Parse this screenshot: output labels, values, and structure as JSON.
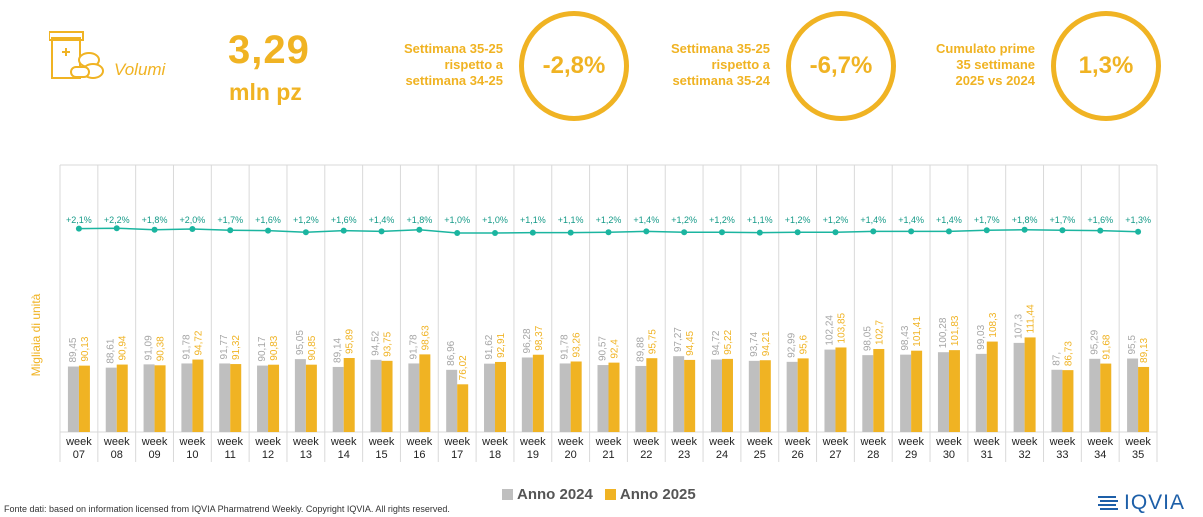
{
  "header": {
    "section_label": "Volumi",
    "volume_value": "3,29",
    "volume_unit": "mln pz",
    "kpis": [
      {
        "label_lines": [
          "Settimana 35-25",
          "rispetto a",
          "settimana 34-25"
        ],
        "value": "-2,8%"
      },
      {
        "label_lines": [
          "Settimana 35-25",
          "rispetto a",
          "settimana 35-24"
        ],
        "value": "-6,7%"
      },
      {
        "label_lines": [
          "Cumulato prime",
          "35 settimane",
          "2025 vs 2024"
        ],
        "value": "1,3%"
      }
    ]
  },
  "colors": {
    "accent": "#F0B323",
    "gray_bar": "#BFBFBF",
    "line": "#1BB5A0",
    "brand": "#1D5FA8"
  },
  "chart_data": {
    "type": "bar",
    "ylabel": "Migliaia di unità",
    "categories": [
      "week 07",
      "week 08",
      "week 09",
      "week 10",
      "week 11",
      "week 12",
      "week 13",
      "week 14",
      "week 15",
      "week 16",
      "week 17",
      "week 18",
      "week 19",
      "week 20",
      "week 21",
      "week 22",
      "week 23",
      "week 24",
      "week 25",
      "week 26",
      "week 27",
      "week 28",
      "week 29",
      "week 30",
      "week 31",
      "week 32",
      "week 33",
      "week 34",
      "week 35"
    ],
    "series": [
      {
        "name": "Anno 2024",
        "values": [
          89.45,
          88.61,
          91.09,
          91.78,
          91.77,
          90.17,
          95.05,
          89.14,
          94.52,
          91.78,
          86.96,
          91.62,
          96.28,
          91.78,
          90.57,
          89.88,
          97.27,
          94.72,
          93.74,
          92.99,
          102.24,
          98.05,
          98.43,
          100.28,
          99.03,
          107.3,
          87.0,
          95.29,
          95.5
        ]
      },
      {
        "name": "Anno 2025",
        "values": [
          90.13,
          90.94,
          90.38,
          94.72,
          91.32,
          90.83,
          90.85,
          95.89,
          93.75,
          98.63,
          76.02,
          92.91,
          98.37,
          93.26,
          92.4,
          95.75,
          94.45,
          95.22,
          94.21,
          95.6,
          103.85,
          102.7,
          101.41,
          101.83,
          108.3,
          111.44,
          86.73,
          91.68,
          89.13
        ]
      }
    ],
    "value_labels_2024": [
      "89,45",
      "88,61",
      "91,09",
      "91,78",
      "91,77",
      "90,17",
      "95,05",
      "89,14",
      "94,52",
      "91,78",
      "86,96",
      "91,62",
      "96,28",
      "91,78",
      "90,57",
      "89,88",
      "97,27",
      "94,72",
      "93,74",
      "92,99",
      "102,24",
      "98,05",
      "98,43",
      "100,28",
      "99,03",
      "107,3",
      "87,",
      "95,29",
      "95,5"
    ],
    "value_labels_2025": [
      "90,13",
      "90,94",
      "90,38",
      "94,72",
      "91,32",
      "90,83",
      "90,85",
      "95,89",
      "93,75",
      "98,63",
      "76,02",
      "92,91",
      "98,37",
      "93,26",
      "92,4",
      "95,75",
      "94,45",
      "95,22",
      "94,21",
      "95,6",
      "103,85",
      "102,7",
      "101,41",
      "101,83",
      "108,3",
      "111,44",
      "86,73",
      "91,68",
      "89,13"
    ],
    "growth_line": {
      "labels": [
        "+2,1%",
        "+2,2%",
        "+1,8%",
        "+2,0%",
        "+1,7%",
        "+1,6%",
        "+1,2%",
        "+1,6%",
        "+1,4%",
        "+1,8%",
        "+1,0%",
        "+1,0%",
        "+1,1%",
        "+1,1%",
        "+1,2%",
        "+1,4%",
        "+1,2%",
        "+1,2%",
        "+1,1%",
        "+1,2%",
        "+1,2%",
        "+1,4%",
        "+1,4%",
        "+1,4%",
        "+1,7%",
        "+1,8%",
        "+1,7%",
        "+1,6%",
        "+1,3%"
      ],
      "values": [
        2.1,
        2.2,
        1.8,
        2.0,
        1.7,
        1.6,
        1.2,
        1.6,
        1.4,
        1.8,
        1.0,
        1.0,
        1.1,
        1.1,
        1.2,
        1.4,
        1.2,
        1.2,
        1.1,
        1.2,
        1.2,
        1.4,
        1.4,
        1.4,
        1.7,
        1.8,
        1.7,
        1.6,
        1.3
      ]
    },
    "grid": true,
    "legend_position": "bottom-center"
  },
  "legend": {
    "label_2024": "Anno 2024",
    "label_2025": "Anno 2025"
  },
  "footer": {
    "source": "Fonte dati: based on information licensed from IQVIA Pharmatrend Weekly. Copyright IQVIA. All rights reserved.",
    "logo_text": "IQVIA"
  }
}
